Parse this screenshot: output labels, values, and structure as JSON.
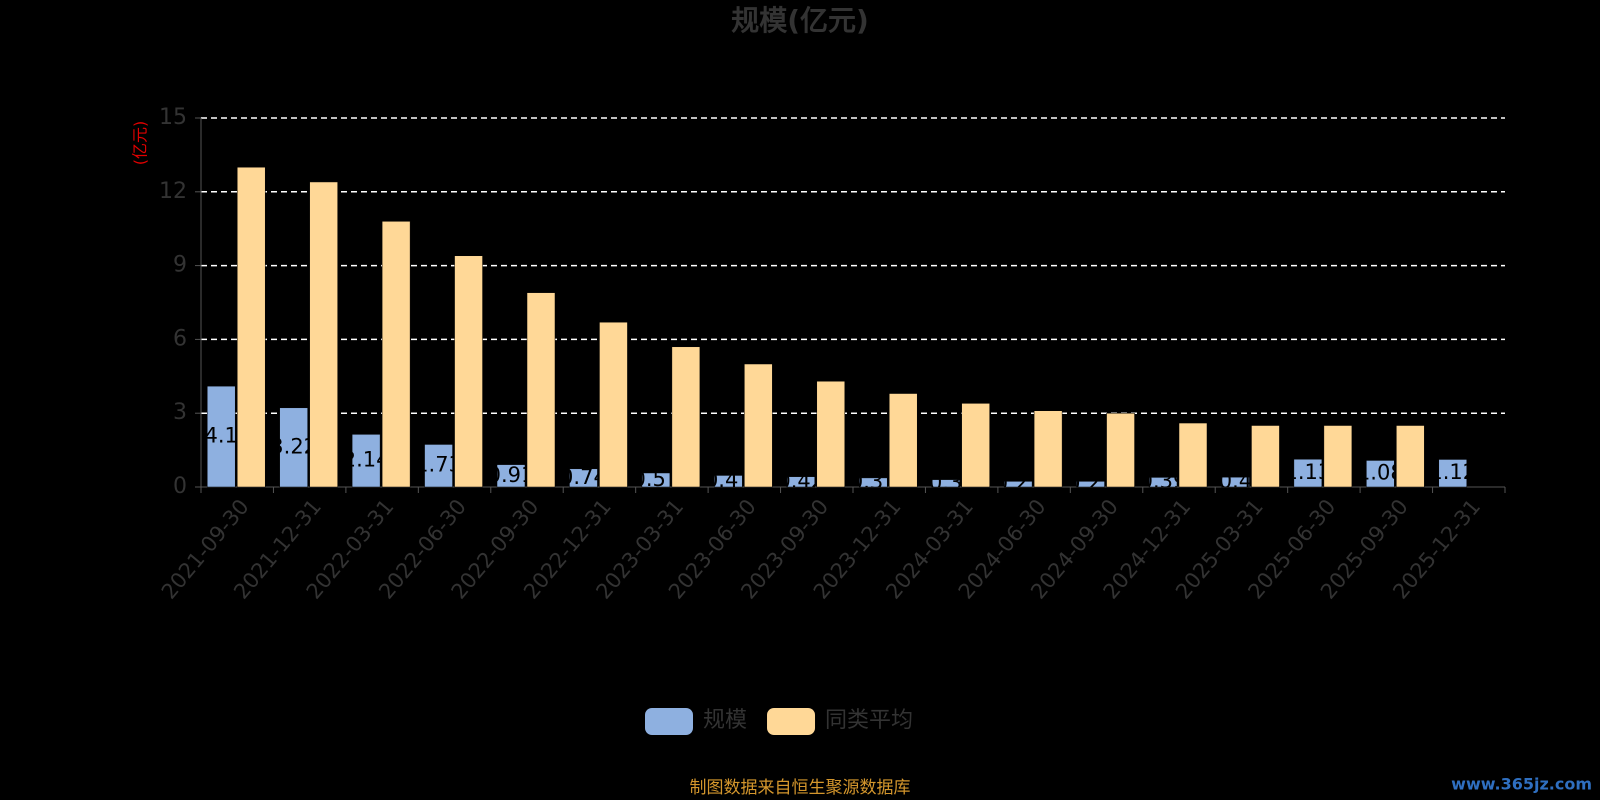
{
  "chart_data": {
    "type": "bar",
    "title": "规模(亿元)",
    "y_axis_label": "(亿元)",
    "categories": [
      "2021-09-30",
      "2021-12-31",
      "2022-03-31",
      "2022-06-30",
      "2022-09-30",
      "2022-12-31",
      "2023-03-31",
      "2023-06-30",
      "2023-09-30",
      "2023-12-31",
      "2024-03-31",
      "2024-06-30",
      "2024-09-30",
      "2024-12-31",
      "2025-03-31",
      "2025-06-30",
      "2025-09-30",
      "2025-12-31"
    ],
    "series": [
      {
        "name": "规模",
        "color": "#8eb0e0",
        "values": [
          4.1,
          3.22,
          2.14,
          1.73,
          0.91,
          0.74,
          0.57,
          0.47,
          0.42,
          0.37,
          0.3,
          0.23,
          0.23,
          0.39,
          0.4,
          1.13,
          1.08,
          1.12
        ]
      },
      {
        "name": "同类平均",
        "color": "#ffd897",
        "values": [
          13.0,
          12.4,
          10.8,
          9.4,
          7.9,
          6.7,
          5.7,
          5.0,
          4.3,
          3.8,
          3.4,
          3.1,
          3.0,
          2.6,
          2.5,
          2.5,
          2.5,
          null
        ]
      }
    ],
    "ylim": [
      0,
      15
    ],
    "yticks": [
      0,
      3,
      6,
      9,
      12,
      15
    ],
    "grid": true,
    "legend": "bottom",
    "source_note": "制图数据来自恒生聚源数据库",
    "watermark": "www.365jz.com"
  }
}
